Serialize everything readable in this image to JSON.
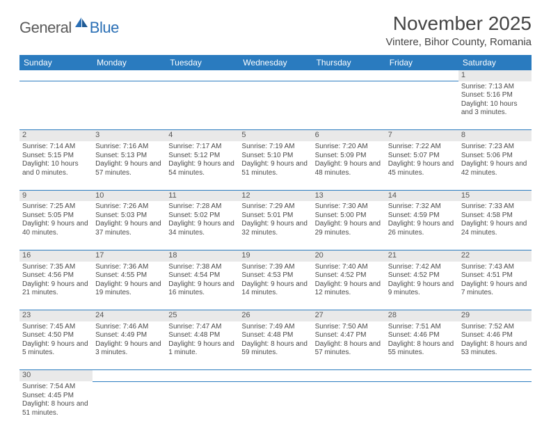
{
  "logo": {
    "text1": "General",
    "text2": "Blue"
  },
  "title": "November 2025",
  "location": "Vintere, Bihor County, Romania",
  "headers": [
    "Sunday",
    "Monday",
    "Tuesday",
    "Wednesday",
    "Thursday",
    "Friday",
    "Saturday"
  ],
  "colors": {
    "header_bg": "#2a7bbf",
    "header_text": "#ffffff",
    "daynum_bg": "#e9e9e9",
    "rule": "#2a7bbf",
    "logo_blue": "#2a6fb5",
    "text": "#4a4a4a"
  },
  "weeks": [
    {
      "nums": [
        "",
        "",
        "",
        "",
        "",
        "",
        "1"
      ],
      "cells": [
        null,
        null,
        null,
        null,
        null,
        null,
        {
          "sunrise": "7:13 AM",
          "sunset": "5:16 PM",
          "daylight": "10 hours and 3 minutes."
        }
      ]
    },
    {
      "nums": [
        "2",
        "3",
        "4",
        "5",
        "6",
        "7",
        "8"
      ],
      "cells": [
        {
          "sunrise": "7:14 AM",
          "sunset": "5:15 PM",
          "daylight": "10 hours and 0 minutes."
        },
        {
          "sunrise": "7:16 AM",
          "sunset": "5:13 PM",
          "daylight": "9 hours and 57 minutes."
        },
        {
          "sunrise": "7:17 AM",
          "sunset": "5:12 PM",
          "daylight": "9 hours and 54 minutes."
        },
        {
          "sunrise": "7:19 AM",
          "sunset": "5:10 PM",
          "daylight": "9 hours and 51 minutes."
        },
        {
          "sunrise": "7:20 AM",
          "sunset": "5:09 PM",
          "daylight": "9 hours and 48 minutes."
        },
        {
          "sunrise": "7:22 AM",
          "sunset": "5:07 PM",
          "daylight": "9 hours and 45 minutes."
        },
        {
          "sunrise": "7:23 AM",
          "sunset": "5:06 PM",
          "daylight": "9 hours and 42 minutes."
        }
      ]
    },
    {
      "nums": [
        "9",
        "10",
        "11",
        "12",
        "13",
        "14",
        "15"
      ],
      "cells": [
        {
          "sunrise": "7:25 AM",
          "sunset": "5:05 PM",
          "daylight": "9 hours and 40 minutes."
        },
        {
          "sunrise": "7:26 AM",
          "sunset": "5:03 PM",
          "daylight": "9 hours and 37 minutes."
        },
        {
          "sunrise": "7:28 AM",
          "sunset": "5:02 PM",
          "daylight": "9 hours and 34 minutes."
        },
        {
          "sunrise": "7:29 AM",
          "sunset": "5:01 PM",
          "daylight": "9 hours and 32 minutes."
        },
        {
          "sunrise": "7:30 AM",
          "sunset": "5:00 PM",
          "daylight": "9 hours and 29 minutes."
        },
        {
          "sunrise": "7:32 AM",
          "sunset": "4:59 PM",
          "daylight": "9 hours and 26 minutes."
        },
        {
          "sunrise": "7:33 AM",
          "sunset": "4:58 PM",
          "daylight": "9 hours and 24 minutes."
        }
      ]
    },
    {
      "nums": [
        "16",
        "17",
        "18",
        "19",
        "20",
        "21",
        "22"
      ],
      "cells": [
        {
          "sunrise": "7:35 AM",
          "sunset": "4:56 PM",
          "daylight": "9 hours and 21 minutes."
        },
        {
          "sunrise": "7:36 AM",
          "sunset": "4:55 PM",
          "daylight": "9 hours and 19 minutes."
        },
        {
          "sunrise": "7:38 AM",
          "sunset": "4:54 PM",
          "daylight": "9 hours and 16 minutes."
        },
        {
          "sunrise": "7:39 AM",
          "sunset": "4:53 PM",
          "daylight": "9 hours and 14 minutes."
        },
        {
          "sunrise": "7:40 AM",
          "sunset": "4:52 PM",
          "daylight": "9 hours and 12 minutes."
        },
        {
          "sunrise": "7:42 AM",
          "sunset": "4:52 PM",
          "daylight": "9 hours and 9 minutes."
        },
        {
          "sunrise": "7:43 AM",
          "sunset": "4:51 PM",
          "daylight": "9 hours and 7 minutes."
        }
      ]
    },
    {
      "nums": [
        "23",
        "24",
        "25",
        "26",
        "27",
        "28",
        "29"
      ],
      "cells": [
        {
          "sunrise": "7:45 AM",
          "sunset": "4:50 PM",
          "daylight": "9 hours and 5 minutes."
        },
        {
          "sunrise": "7:46 AM",
          "sunset": "4:49 PM",
          "daylight": "9 hours and 3 minutes."
        },
        {
          "sunrise": "7:47 AM",
          "sunset": "4:48 PM",
          "daylight": "9 hours and 1 minute."
        },
        {
          "sunrise": "7:49 AM",
          "sunset": "4:48 PM",
          "daylight": "8 hours and 59 minutes."
        },
        {
          "sunrise": "7:50 AM",
          "sunset": "4:47 PM",
          "daylight": "8 hours and 57 minutes."
        },
        {
          "sunrise": "7:51 AM",
          "sunset": "4:46 PM",
          "daylight": "8 hours and 55 minutes."
        },
        {
          "sunrise": "7:52 AM",
          "sunset": "4:46 PM",
          "daylight": "8 hours and 53 minutes."
        }
      ]
    },
    {
      "nums": [
        "30",
        "",
        "",
        "",
        "",
        "",
        ""
      ],
      "cells": [
        {
          "sunrise": "7:54 AM",
          "sunset": "4:45 PM",
          "daylight": "8 hours and 51 minutes."
        },
        null,
        null,
        null,
        null,
        null,
        null
      ]
    }
  ],
  "labels": {
    "sunrise": "Sunrise: ",
    "sunset": "Sunset: ",
    "daylight": "Daylight: "
  }
}
